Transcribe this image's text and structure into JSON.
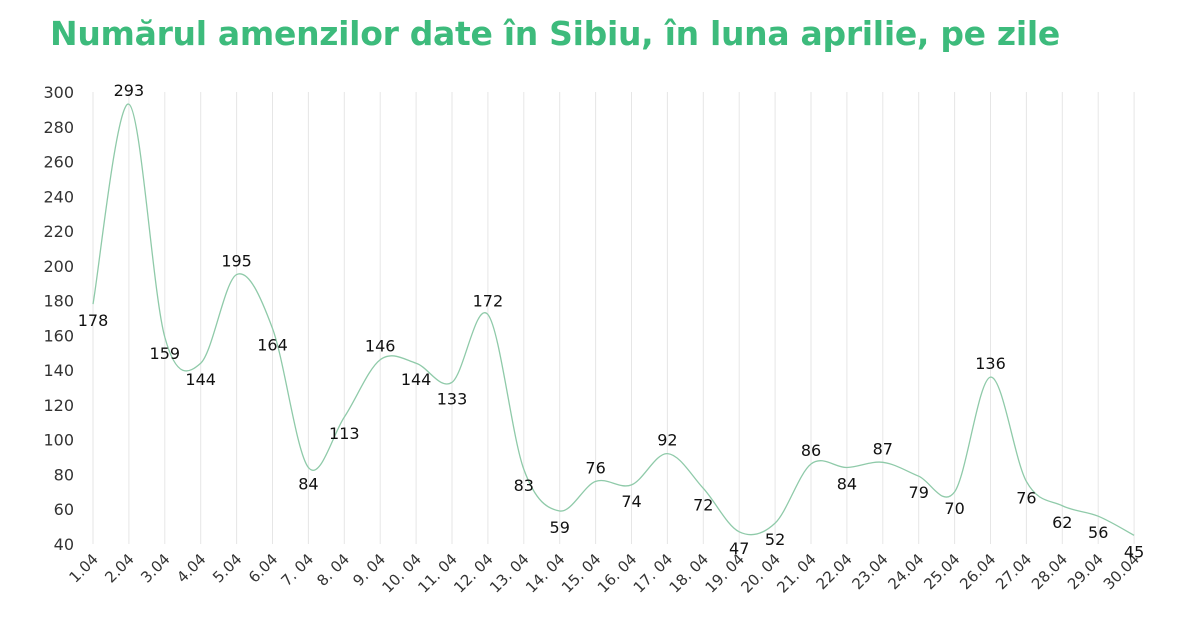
{
  "title": "Numărul amenzilor date în Sibiu, în luna aprilie, pe zile",
  "colors": {
    "title": "#3dbb7c",
    "line": "#8fcaa9",
    "grid": "#e6e6e6"
  },
  "chart_data": {
    "type": "line",
    "title": "Numărul amenzilor date în Sibiu, în luna aprilie, pe zile",
    "xlabel": "",
    "ylabel": "",
    "ylim": [
      40,
      300
    ],
    "yticks": [
      40,
      60,
      80,
      100,
      120,
      140,
      160,
      180,
      200,
      220,
      240,
      260,
      280,
      300
    ],
    "grid": "vertical",
    "smooth": true,
    "categories": [
      "1.04",
      "2.04",
      "3.04",
      "4.04",
      "5.04",
      "6.04",
      "7. 04",
      "8. 04",
      "9. 04",
      "10. 04",
      "11. 04",
      "12. 04",
      "13. 04",
      "14. 04",
      "15. 04",
      "16. 04",
      "17. 04",
      "18. 04",
      "19. 04",
      "20. 04",
      "21. 04",
      "22.04",
      "23.04",
      "24.04",
      "25.04",
      "26.04",
      "27.04",
      "28.04",
      "29.04",
      "30.04"
    ],
    "values": [
      178,
      293,
      159,
      144,
      195,
      164,
      84,
      113,
      146,
      144,
      133,
      172,
      83,
      59,
      76,
      74,
      92,
      72,
      47,
      52,
      86,
      84,
      87,
      79,
      70,
      136,
      76,
      62,
      56,
      45
    ]
  }
}
